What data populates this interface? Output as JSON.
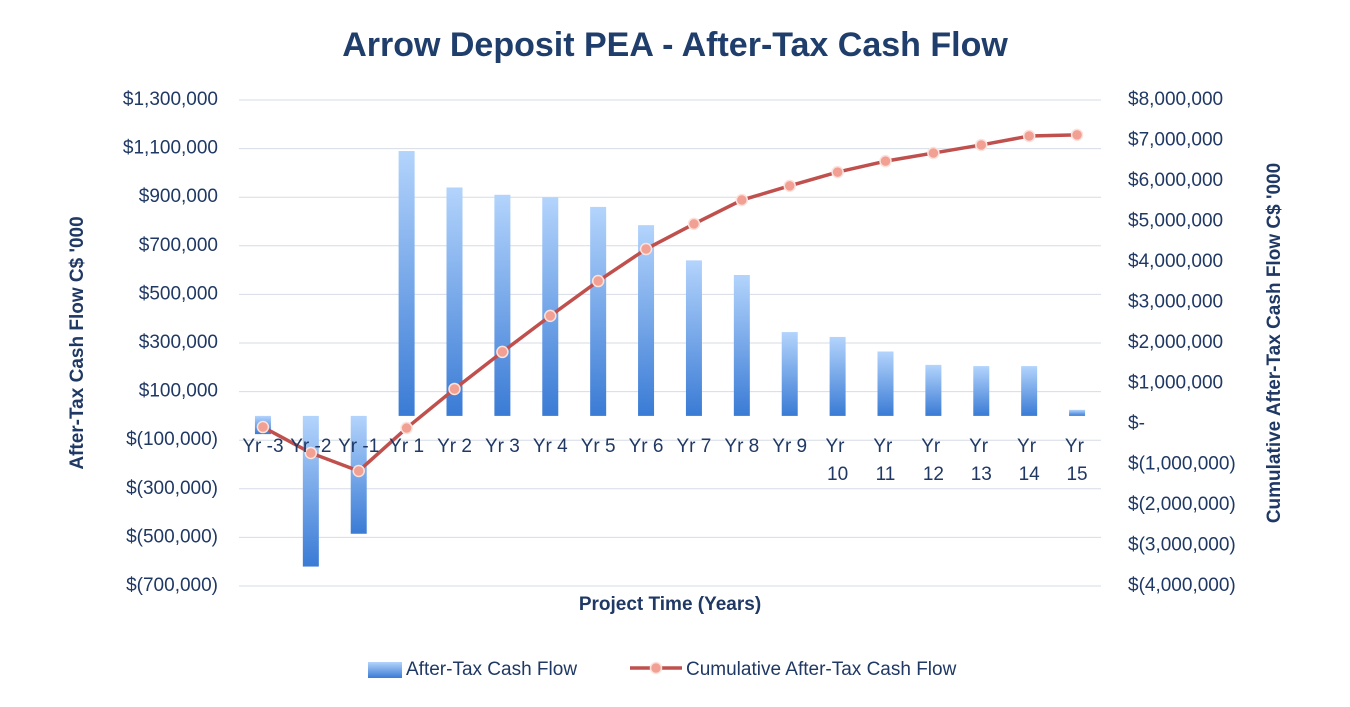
{
  "chart_data": {
    "type": "bar_line",
    "title": "Arrow Deposit PEA - After-Tax Cash Flow",
    "x_label": "Project Time (Years)",
    "y_label": "After-Tax Cash Flow C$ '000",
    "y2_label": "Cumulative After-Tax Cash Flow C$ '000",
    "categories": [
      "Yr -3",
      "Yr -2",
      "Yr -1",
      "Yr 1",
      "Yr 2",
      "Yr 3",
      "Yr 4",
      "Yr 5",
      "Yr 6",
      "Yr 7",
      "Yr 8",
      "Yr 9",
      "Yr 10",
      "Yr 11",
      "Yr 12",
      "Yr 13",
      "Yr 14",
      "Yr 15"
    ],
    "series": [
      {
        "name": "After-Tax Cash Flow",
        "color": "#4a8ee0",
        "values": [
          -75000,
          -620000,
          -485000,
          1090000,
          940000,
          910000,
          900000,
          860000,
          785000,
          640000,
          580000,
          345000,
          325000,
          265000,
          210000,
          205000,
          205000,
          25000
        ]
      },
      {
        "name": "Cumulative After-Tax Cash Flow",
        "color": "#c0504d",
        "axis": "y2",
        "values": [
          -75000,
          -715000,
          -1160000,
          -100000,
          865000,
          1780000,
          2670000,
          3530000,
          4320000,
          4940000,
          5530000,
          5880000,
          6220000,
          6490000,
          6690000,
          6890000,
          7110000,
          7140000
        ]
      }
    ],
    "ylim": [
      -700000,
      1300000
    ],
    "yticks": [
      {
        "value": -700000,
        "label": "$(700,000)"
      },
      {
        "value": -500000,
        "label": "$(500,000)"
      },
      {
        "value": -300000,
        "label": "$(300,000)"
      },
      {
        "value": -100000,
        "label": "$(100,000)"
      },
      {
        "value": 100000,
        "label": "$100,000"
      },
      {
        "value": 300000,
        "label": "$300,000"
      },
      {
        "value": 500000,
        "label": "$500,000"
      },
      {
        "value": 700000,
        "label": "$700,000"
      },
      {
        "value": 900000,
        "label": "$900,000"
      },
      {
        "value": 1100000,
        "label": "$1,100,000"
      },
      {
        "value": 1300000,
        "label": "$1,300,000"
      }
    ],
    "y2lim": [
      -4000000,
      8000000
    ],
    "y2ticks": [
      {
        "value": -4000000,
        "label": "$(4,000,000)"
      },
      {
        "value": -3000000,
        "label": "$(3,000,000)"
      },
      {
        "value": -2000000,
        "label": "$(2,000,000)"
      },
      {
        "value": -1000000,
        "label": "$(1,000,000)"
      },
      {
        "value": 0,
        "label": "$-"
      },
      {
        "value": 1000000,
        "label": "$1,000,000"
      },
      {
        "value": 2000000,
        "label": "$2,000,000"
      },
      {
        "value": 3000000,
        "label": "$3,000,000"
      },
      {
        "value": 4000000,
        "label": "$4,000,000"
      },
      {
        "value": 5000000,
        "label": "$5,000,000"
      },
      {
        "value": 6000000,
        "label": "$6,000,000"
      },
      {
        "value": 7000000,
        "label": "$7,000,000"
      },
      {
        "value": 8000000,
        "label": "$8,000,000"
      }
    ],
    "grid": true,
    "legend": "bottom"
  }
}
